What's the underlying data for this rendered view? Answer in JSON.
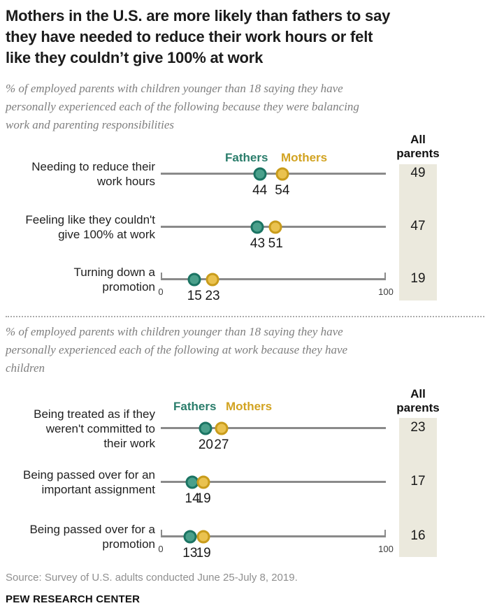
{
  "header": {
    "title": "Mothers in the U.S. are more likely than fathers to say\nthey have needed to reduce their work hours or felt\nlike they couldn’t give 100% at work"
  },
  "colors": {
    "fathers_fill": "#4aa08b",
    "fathers_stroke": "#1b7463",
    "fathers_text": "#2a7d6b",
    "mothers_fill": "#eac24f",
    "mothers_stroke": "#c99c1b",
    "mothers_text": "#d2a321",
    "line": "#8a8a8a",
    "all_parents_column": "#ebe9dd"
  },
  "chart_data": [
    {
      "type": "scatter",
      "subtitle": "% of employed parents with children younger than 18 saying they have\npersonally experienced each of the following because they were balancing\nwork and parenting responsibilities",
      "legend": {
        "fathers": "Fathers",
        "mothers": "Mothers"
      },
      "all_parents_header": "All\nparents",
      "axis": {
        "min": 0,
        "max": 100
      },
      "rows": [
        {
          "label": "Needing to reduce their\nwork hours",
          "fathers": 44,
          "mothers": 54,
          "all_parents": 49
        },
        {
          "label": "Feeling like they couldn't\ngive 100% at work",
          "fathers": 43,
          "mothers": 51,
          "all_parents": 47
        },
        {
          "label": "Turning down a\npromotion",
          "fathers": 15,
          "mothers": 23,
          "all_parents": 19
        }
      ]
    },
    {
      "type": "scatter",
      "subtitle": "% of employed parents with children younger than 18 saying they have\npersonally experienced each of the following at work because they have\nchildren",
      "legend": {
        "fathers": "Fathers",
        "mothers": "Mothers"
      },
      "all_parents_header": "All\nparents",
      "axis": {
        "min": 0,
        "max": 100
      },
      "rows": [
        {
          "label": "Being treated as if they\nweren't committed to\ntheir work",
          "fathers": 20,
          "mothers": 27,
          "all_parents": 23
        },
        {
          "label": "Being passed over for an\nimportant assignment",
          "fathers": 14,
          "mothers": 19,
          "all_parents": 17
        },
        {
          "label": "Being passed over for a\npromotion",
          "fathers": 13,
          "mothers": 19,
          "all_parents": 16
        }
      ]
    }
  ],
  "footer": {
    "source": "Source: Survey of U.S. adults conducted June 25-July 8, 2019.",
    "brand": "PEW RESEARCH CENTER"
  }
}
